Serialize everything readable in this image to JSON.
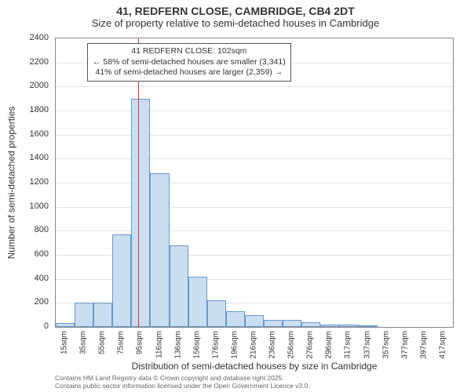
{
  "title": "41, REDFERN CLOSE, CAMBRIDGE, CB4 2DT",
  "subtitle": "Size of property relative to semi-detached houses in Cambridge",
  "ylabel": "Number of semi-detached properties",
  "xlabel": "Distribution of semi-detached houses by size in Cambridge",
  "chart": {
    "type": "histogram",
    "ylim": [
      0,
      2400
    ],
    "ytick_step": 200,
    "background_color": "#ffffff",
    "grid_color": "#e3e3e3",
    "bar_fill": "#cbddf0",
    "bar_border": "#6699cc",
    "marker_color": "#cc3333",
    "categories": [
      "15sqm",
      "35sqm",
      "55sqm",
      "75sqm",
      "95sqm",
      "116sqm",
      "136sqm",
      "156sqm",
      "176sqm",
      "196sqm",
      "216sqm",
      "236sqm",
      "256sqm",
      "276sqm",
      "296sqm",
      "317sqm",
      "337sqm",
      "357sqm",
      "377sqm",
      "397sqm",
      "417sqm"
    ],
    "values": [
      30,
      200,
      200,
      770,
      1900,
      1280,
      680,
      420,
      220,
      130,
      100,
      60,
      60,
      40,
      20,
      20,
      10,
      0,
      0,
      0,
      0
    ],
    "marker_category_index": 4.35,
    "annotation": {
      "line1": "41 REDFERN CLOSE: 102sqm",
      "line2": "← 58% of semi-detached houses are smaller (3,341)",
      "line3": "41% of semi-detached houses are larger (2,359) →"
    }
  },
  "license": {
    "line1": "Contains HM Land Registry data © Crown copyright and database right 2025.",
    "line2": "Contains public sector information licensed under the Open Government Licence v3.0."
  }
}
